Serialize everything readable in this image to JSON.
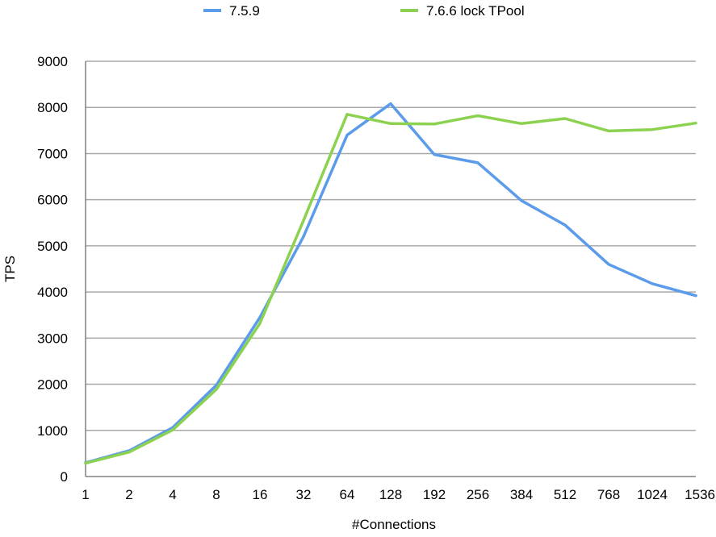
{
  "chart_data": {
    "type": "line",
    "title": "",
    "xlabel": "#Connections",
    "ylabel": "TPS",
    "categories": [
      "1",
      "2",
      "4",
      "8",
      "16",
      "32",
      "64",
      "128",
      "192",
      "256",
      "384",
      "512",
      "768",
      "1024",
      "1536"
    ],
    "ylim": [
      0,
      9000
    ],
    "yticks": [
      0,
      1000,
      2000,
      3000,
      4000,
      5000,
      6000,
      7000,
      8000,
      9000
    ],
    "grid": true,
    "legend_position": "top",
    "series": [
      {
        "name": "7.5.9",
        "color": "#5b9bea",
        "values": [
          300,
          560,
          1060,
          1980,
          3450,
          5200,
          7400,
          8080,
          6980,
          6800,
          5980,
          5450,
          4600,
          4180,
          3920
        ]
      },
      {
        "name": "7.6.6 lock TPool",
        "color": "#8cd250",
        "values": [
          290,
          530,
          1010,
          1890,
          3320,
          5550,
          7850,
          7650,
          7640,
          7820,
          7650,
          7760,
          7490,
          7520,
          7660
        ]
      }
    ]
  }
}
